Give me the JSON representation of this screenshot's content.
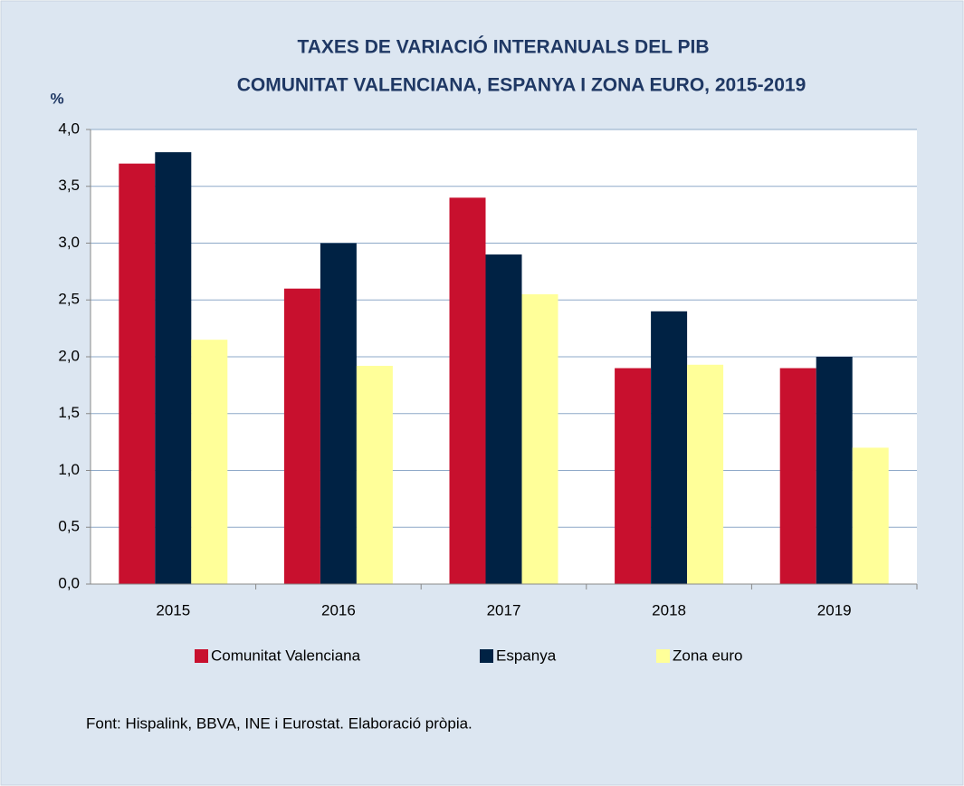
{
  "chart_data": {
    "type": "bar",
    "title": [
      "TAXES DE VARIACIÓ INTERANUALS DEL PIB",
      "COMUNITAT VALENCIANA, ESPANYA I ZONA EURO, 2015-2019"
    ],
    "y_label": "%",
    "categories": [
      "2015",
      "2016",
      "2017",
      "2018",
      "2019"
    ],
    "series": [
      {
        "name": "Comunitat Valenciana",
        "color": "#c8102e",
        "values": [
          3.7,
          2.6,
          3.4,
          1.9,
          1.9
        ]
      },
      {
        "name": "Espanya",
        "color": "#002244",
        "values": [
          3.8,
          3.0,
          2.9,
          2.4,
          2.0
        ]
      },
      {
        "name": "Zona euro",
        "color": "#ffff99",
        "values": [
          2.15,
          1.92,
          2.55,
          1.93,
          1.2
        ]
      }
    ],
    "ylim": [
      0,
      4
    ],
    "yticks": [
      {
        "value": 0,
        "label": "0,0"
      },
      {
        "value": 0.5,
        "label": "0,5"
      },
      {
        "value": 1,
        "label": "1,0"
      },
      {
        "value": 1.5,
        "label": "1,5"
      },
      {
        "value": 2,
        "label": "2,0"
      },
      {
        "value": 2.5,
        "label": "2,5"
      },
      {
        "value": 3,
        "label": "3,0"
      },
      {
        "value": 3.5,
        "label": "3,5"
      },
      {
        "value": 4,
        "label": "4,0"
      }
    ],
    "grid": true,
    "legend": "bottom",
    "source": "Font: Hispalink, BBVA, INE i Eurostat. Elaboració pròpia."
  }
}
